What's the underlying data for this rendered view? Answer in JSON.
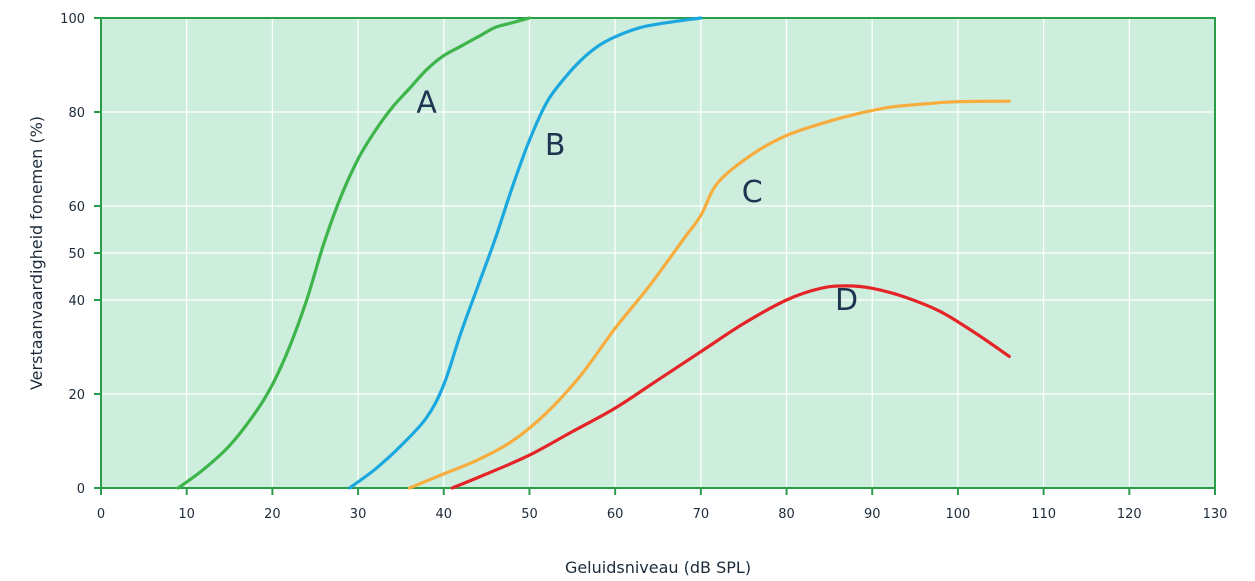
{
  "chart_data": {
    "type": "line",
    "title": "",
    "xlabel": "Geluidsniveau (dB SPL)",
    "ylabel": "Verstaanvaardigheid fonemen (%)",
    "xlim": [
      0,
      130
    ],
    "ylim": [
      0,
      100
    ],
    "x_ticks": [
      0,
      10,
      20,
      30,
      40,
      50,
      60,
      70,
      80,
      90,
      100,
      110,
      120,
      130
    ],
    "y_ticks": [
      0,
      20,
      40,
      50,
      60,
      80,
      100
    ],
    "grid": true,
    "colors": {
      "plot_background": "#cdeddd",
      "grid": "#ffffff",
      "axis": "#2a9d4a"
    },
    "series": [
      {
        "name": "A",
        "color": "#3db54a",
        "points": [
          [
            9,
            0
          ],
          [
            12,
            4
          ],
          [
            15,
            9
          ],
          [
            18,
            16
          ],
          [
            20,
            22
          ],
          [
            22,
            30
          ],
          [
            24,
            40
          ],
          [
            26,
            52
          ],
          [
            28,
            62
          ],
          [
            30,
            70
          ],
          [
            32,
            76
          ],
          [
            34,
            81
          ],
          [
            36,
            85
          ],
          [
            38,
            89
          ],
          [
            40,
            92
          ],
          [
            42,
            94
          ],
          [
            44,
            96
          ],
          [
            46,
            98
          ],
          [
            48,
            99
          ],
          [
            50,
            100
          ]
        ]
      },
      {
        "name": "B",
        "color": "#1aa8de",
        "points": [
          [
            29,
            0
          ],
          [
            32,
            4
          ],
          [
            35,
            9
          ],
          [
            38,
            15
          ],
          [
            40,
            22
          ],
          [
            42,
            33
          ],
          [
            44,
            43
          ],
          [
            46,
            53
          ],
          [
            48,
            64
          ],
          [
            50,
            74
          ],
          [
            52,
            82
          ],
          [
            54,
            87
          ],
          [
            56,
            91
          ],
          [
            58,
            94
          ],
          [
            60,
            96
          ],
          [
            63,
            98
          ],
          [
            66,
            99
          ],
          [
            70,
            100
          ]
        ]
      },
      {
        "name": "C",
        "color": "#f7ad3e",
        "points": [
          [
            36,
            0
          ],
          [
            40,
            3
          ],
          [
            44,
            6
          ],
          [
            48,
            10
          ],
          [
            52,
            16
          ],
          [
            56,
            24
          ],
          [
            60,
            34
          ],
          [
            64,
            43
          ],
          [
            68,
            53
          ],
          [
            70,
            58
          ],
          [
            72,
            65
          ],
          [
            76,
            71
          ],
          [
            80,
            75
          ],
          [
            84,
            77.5
          ],
          [
            88,
            79.5
          ],
          [
            92,
            81
          ],
          [
            96,
            81.7
          ],
          [
            100,
            82.2
          ],
          [
            106,
            82.3
          ]
        ]
      },
      {
        "name": "D",
        "color": "#e42528",
        "points": [
          [
            41,
            0
          ],
          [
            45,
            3
          ],
          [
            50,
            7
          ],
          [
            55,
            12
          ],
          [
            60,
            17
          ],
          [
            65,
            23
          ],
          [
            70,
            29
          ],
          [
            75,
            35
          ],
          [
            80,
            40
          ],
          [
            84,
            42.5
          ],
          [
            87,
            43
          ],
          [
            90,
            42.5
          ],
          [
            94,
            40.5
          ],
          [
            98,
            37.5
          ],
          [
            102,
            33
          ],
          [
            106,
            28
          ]
        ]
      }
    ],
    "curve_labels": [
      {
        "text": "A",
        "x": 38,
        "y": 82
      },
      {
        "text": "B",
        "x": 53,
        "y": 73
      },
      {
        "text": "C",
        "x": 76,
        "y": 63
      },
      {
        "text": "D",
        "x": 87,
        "y": 40
      }
    ]
  }
}
